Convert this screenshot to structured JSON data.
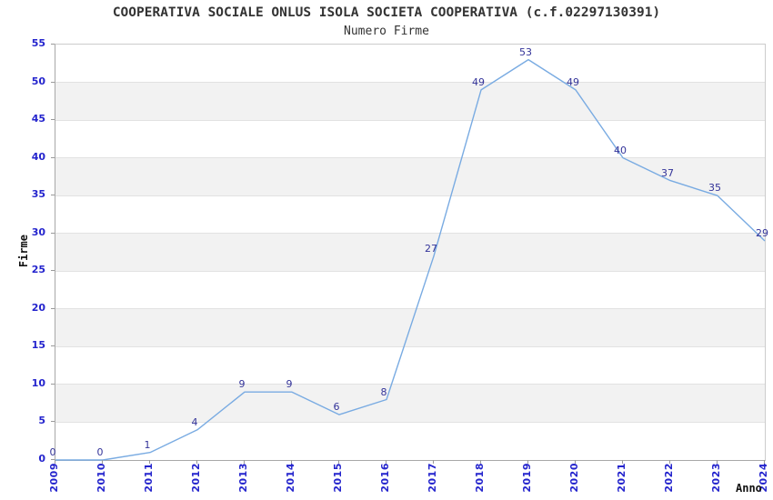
{
  "header": {
    "title": "COOPERATIVA SOCIALE ONLUS ISOLA SOCIETA COOPERATIVA (c.f.02297130391)",
    "subtitle": "Numero Firme"
  },
  "chart_data": {
    "type": "line",
    "title": "COOPERATIVA SOCIALE ONLUS ISOLA SOCIETA COOPERATIVA (c.f.02297130391)",
    "subtitle": "Numero Firme",
    "xlabel": "Anno",
    "ylabel": "Firme",
    "categories": [
      "2009",
      "2010",
      "2011",
      "2012",
      "2013",
      "2014",
      "2015",
      "2016",
      "2017",
      "2018",
      "2019",
      "2020",
      "2021",
      "2022",
      "2023",
      "2024"
    ],
    "values": [
      0,
      0,
      1,
      4,
      9,
      9,
      6,
      8,
      27,
      49,
      53,
      49,
      40,
      37,
      35,
      29
    ],
    "data_labels_shown": true,
    "ylim": [
      0,
      55
    ],
    "ytick_step": 5,
    "yticks": [
      "0",
      "5",
      "10",
      "15",
      "20",
      "25",
      "30",
      "35",
      "40",
      "45",
      "50",
      "55"
    ],
    "grid": "horizontal-alternating-bands",
    "legend_position": "none",
    "colors": {
      "line": "#79abe2",
      "data_label": "#333399",
      "tick_label": "#2424cd",
      "band_fill": "#f2f2f2",
      "band_edge": "#e2e2e2",
      "plot_border": "#cccccc",
      "axis_line": "#a8a8a8",
      "title_text": "#333333"
    }
  }
}
